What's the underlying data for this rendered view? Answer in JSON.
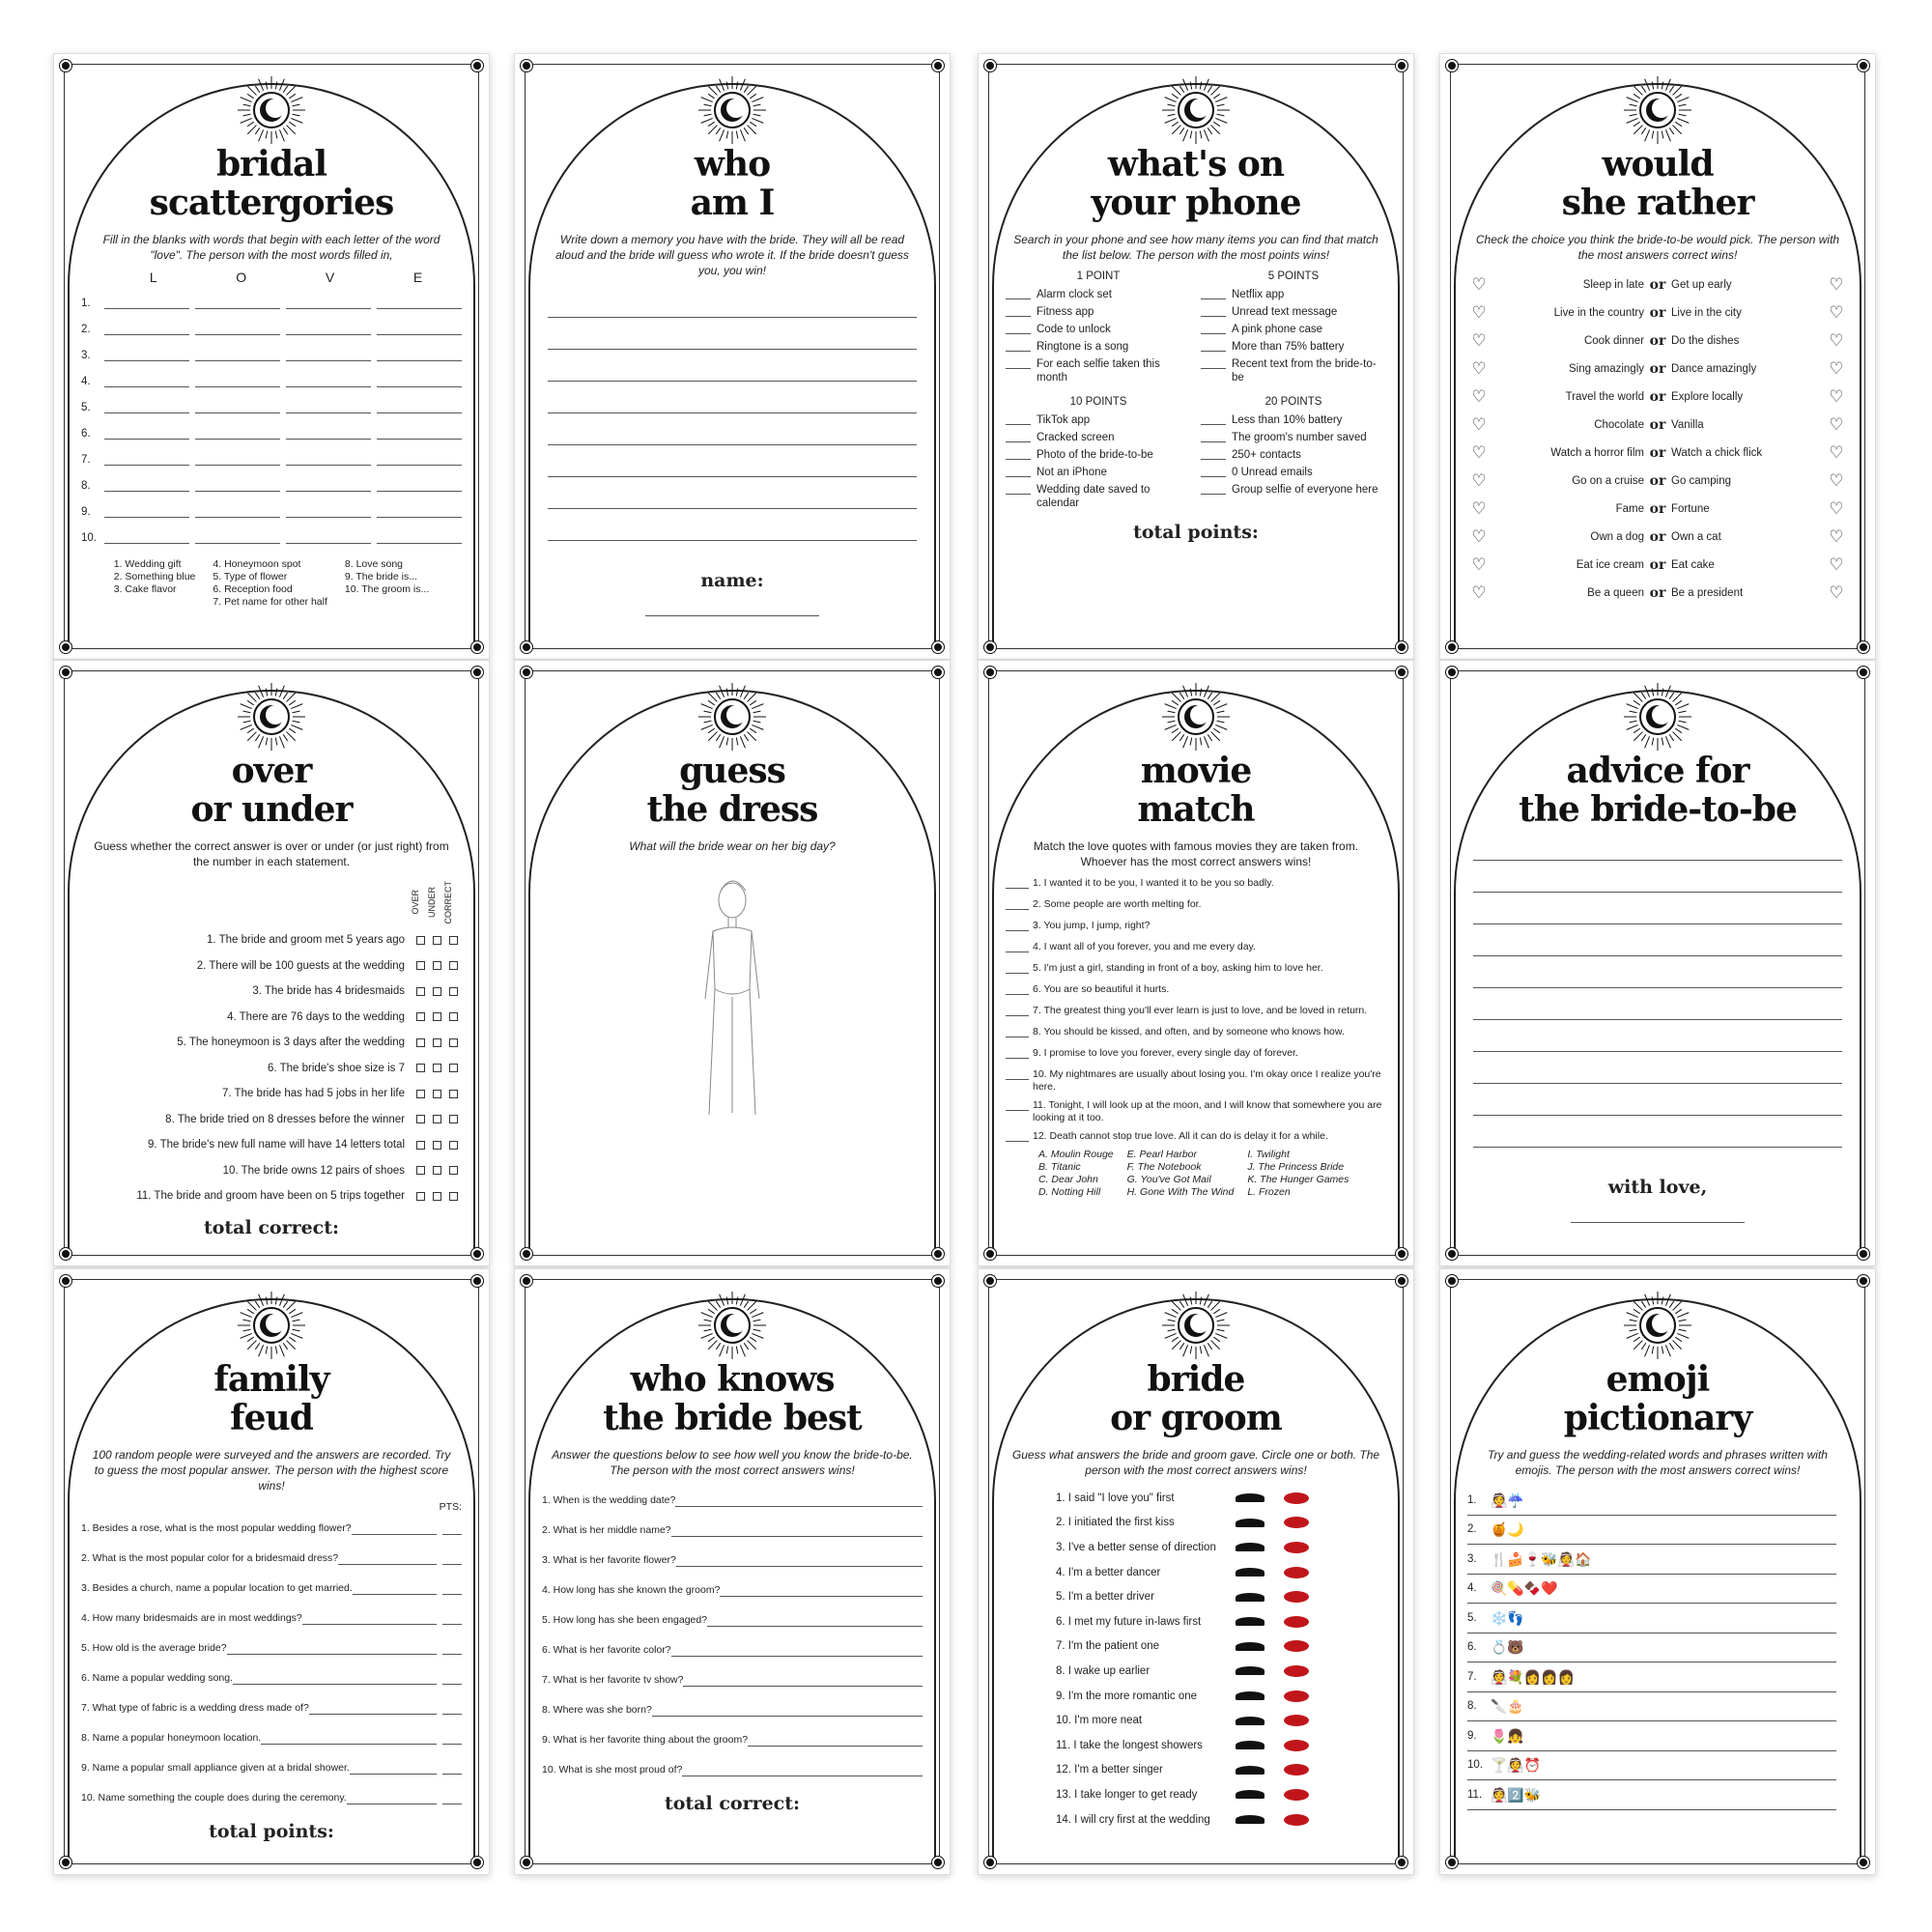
{
  "cards": [
    {
      "type": "scatter",
      "title": [
        "bridal",
        "scattergories"
      ],
      "instr": "Fill in the blanks with words that begin with each letter of the word \"love\". The person with the most words filled in,",
      "letters": [
        "L",
        "O",
        "V",
        "E"
      ],
      "nums": [
        "1.",
        "2.",
        "3.",
        "4.",
        "5.",
        "6.",
        "7.",
        "8.",
        "9.",
        "10."
      ],
      "cats": [
        [
          "1. Wedding gift",
          "2. Something blue",
          "3. Cake flavor"
        ],
        [
          "4. Honeymoon spot",
          "5. Type of flower",
          "6. Reception food",
          "7. Pet name for other half"
        ],
        [
          "8. Love song",
          "9. The bride is...",
          "10. The groom is..."
        ]
      ]
    },
    {
      "type": "lines",
      "title": [
        "who",
        "am I"
      ],
      "instr": "Write down a memory you have with the bride. They will all be read aloud and the bride will guess who wrote it. If the bride doesn't guess you, you win!",
      "count": 8,
      "foot": "name:"
    },
    {
      "type": "phone",
      "title": [
        "what's on",
        "your phone"
      ],
      "instr": "Search in your phone and see how many items you can find that match the list below. The person with the most points wins!",
      "groups": [
        {
          "h": "1 POINT",
          "items": [
            "Alarm clock set",
            "Fitness app",
            "Code to unlock",
            "Ringtone is a song",
            "For each selfie taken this month"
          ]
        },
        {
          "h": "5 POINTS",
          "items": [
            "Netflix app",
            "Unread text message",
            "A pink phone case",
            "More than 75% battery",
            "Recent text from the bride-to-be"
          ]
        },
        {
          "h": "10 POINTS",
          "items": [
            "TikTok app",
            "Cracked screen",
            "Photo of the bride-to-be",
            "Not an iPhone",
            "Wedding date saved to calendar"
          ]
        },
        {
          "h": "20 POINTS",
          "items": [
            "Less than 10% battery",
            "The groom's number saved",
            "250+ contacts",
            "0 Unread emails",
            "Group selfie of everyone here"
          ]
        }
      ],
      "foot": "total points:"
    },
    {
      "type": "rather",
      "title": [
        "would",
        "she rather"
      ],
      "instr": "Check the choice you think the bride-to-be would pick. The person with the most answers correct wins!",
      "or": "or",
      "pairs": [
        [
          "Sleep in late",
          "Get up early"
        ],
        [
          "Live in the country",
          "Live in the city"
        ],
        [
          "Cook dinner",
          "Do the dishes"
        ],
        [
          "Sing amazingly",
          "Dance amazingly"
        ],
        [
          "Travel the world",
          "Explore locally"
        ],
        [
          "Chocolate",
          "Vanilla"
        ],
        [
          "Watch a horror film",
          "Watch a chick flick"
        ],
        [
          "Go on a cruise",
          "Go camping"
        ],
        [
          "Fame",
          "Fortune"
        ],
        [
          "Own a dog",
          "Own a cat"
        ],
        [
          "Eat ice cream",
          "Eat cake"
        ],
        [
          "Be a queen",
          "Be a president"
        ]
      ]
    },
    {
      "type": "overunder",
      "title": [
        "over",
        "or under"
      ],
      "instr": "Guess whether the correct answer is over or under (or just right) from the number in each statement.",
      "cols": [
        "OVER",
        "UNDER",
        "CORRECT"
      ],
      "items": [
        "1. The bride and groom met 5 years ago",
        "2. There will be 100 guests at the wedding",
        "3. The bride has 4 bridesmaids",
        "4. There are 76 days to the wedding",
        "5. The honeymoon is 3 days after the wedding",
        "6. The bride's shoe size is 7",
        "7. The bride has had 5 jobs in her life",
        "8. The bride tried on 8 dresses before the winner",
        "9. The bride's new full name will have 14 letters total",
        "10. The bride owns 12 pairs of shoes",
        "11. The bride and groom have been on 5 trips together"
      ],
      "foot": "total correct:"
    },
    {
      "type": "dress",
      "title": [
        "guess",
        "the dress"
      ],
      "instr": "What will the bride wear on her big day?"
    },
    {
      "type": "movie",
      "title": [
        "movie",
        "match"
      ],
      "instr": "Match the love quotes with famous movies they are taken from. Whoever has the most correct answers wins!",
      "items": [
        "1. I wanted it to be you, I wanted it to be you so badly.",
        "2. Some people are worth melting for.",
        "3. You jump, I jump, right?",
        "4. I want all of you forever, you and me every day.",
        "5. I'm just a girl, standing in front of a boy, asking him to love her.",
        "6. You are so beautiful it hurts.",
        "7. The greatest thing you'll ever learn is just to love, and be loved in return.",
        "8. You should be kissed, and often, and by someone who knows how.",
        "9. I promise to love you forever, every single day of forever.",
        "10. My nightmares are usually about losing you. I'm okay once I realize you're here.",
        "11. Tonight, I will look up at the moon, and I will know that somewhere you are looking at it too.",
        "12. Death cannot stop true love. All it can do is delay it for a while."
      ],
      "movies": [
        [
          "A. Moulin Rouge",
          "B. Titanic",
          "C. Dear John",
          "D. Notting Hill"
        ],
        [
          "E. Pearl Harbor",
          "F. The Notebook",
          "G. You've Got Mail",
          "H. Gone With The Wind"
        ],
        [
          "I. Twilight",
          "J. The Princess Bride",
          "K. The Hunger Games",
          "L. Frozen"
        ]
      ]
    },
    {
      "type": "lines",
      "title": [
        "advice for",
        "the bride-to-be"
      ],
      "instr": "",
      "count": 10,
      "foot": "with love,"
    },
    {
      "type": "qa",
      "title": [
        "family",
        "feud"
      ],
      "instr": "100 random people were surveyed and the answers are recorded. Try to guess the most popular answer. The person with the highest score wins!",
      "pts": "PTS:",
      "items": [
        "1. Besides a rose, what is the most popular wedding flower?",
        "2. What is the most popular color for a bridesmaid dress?",
        "3. Besides a church, name a popular location to get married.",
        "4. How many bridesmaids are in most weddings?",
        "5. How old is the average bride?",
        "6. Name a popular wedding song.",
        "7. What type of fabric is a wedding dress made of?",
        "8. Name a popular honeymoon location.",
        "9. Name a popular small appliance given at a bridal shower.",
        "10. Name something the couple does during the ceremony."
      ],
      "foot": "total points:"
    },
    {
      "type": "qa",
      "title": [
        "who knows",
        "the bride best"
      ],
      "instr": "Answer the questions below to see how well you know the bride-to-be. The person with the most correct answers wins!",
      "items": [
        "1. When is the wedding date?",
        "2. What is her middle name?",
        "3. What is her favorite flower?",
        "4. How long has she known the groom?",
        "5. How long has she been engaged?",
        "6. What is her favorite color?",
        "7. What is her favorite tv show?",
        "8. Where was she born?",
        "9. What is her favorite thing about the groom?",
        "10. What is she most proud of?"
      ],
      "foot": "total correct:"
    },
    {
      "type": "bg",
      "title": [
        "bride",
        "or groom"
      ],
      "instr": "Guess what answers the bride and groom gave. Circle one or both. The person with the most correct answers wins!",
      "items": [
        "1. I said \"I love you\" first",
        "2. I initiated the first kiss",
        "3. I've a better sense of direction",
        "4. I'm a better dancer",
        "5. I'm a better driver",
        "6. I met my future in-laws first",
        "7. I'm the patient one",
        "8. I wake up earlier",
        "9. I'm the more romantic one",
        "10. I'm more neat",
        "11. I take the longest showers",
        "12. I'm a better singer",
        "13. I take longer to get ready",
        "14. I will cry first at the wedding"
      ],
      "colors": {
        "lips": "#c0161b",
        "mustache": "#111111"
      }
    },
    {
      "type": "emoji",
      "title": [
        "emoji",
        "pictionary"
      ],
      "instr": "Try and guess the wedding-related words and phrases written with emojis. The person with the most answers correct wins!",
      "items": [
        [
          "1.",
          "👰☔"
        ],
        [
          "2.",
          "🍯🌙"
        ],
        [
          "3.",
          "🍴🍰🍷🐝👰🏠"
        ],
        [
          "4.",
          "🍭💊🍫❤️"
        ],
        [
          "5.",
          "❄️👣"
        ],
        [
          "6.",
          "💍🐻"
        ],
        [
          "7.",
          "👰💐👩👩👩"
        ],
        [
          "8.",
          "🔪🎂"
        ],
        [
          "9.",
          "🌷👧"
        ],
        [
          "10.",
          "🍸👰⏰"
        ],
        [
          "11.",
          "👰2️⃣🐝"
        ]
      ]
    }
  ]
}
